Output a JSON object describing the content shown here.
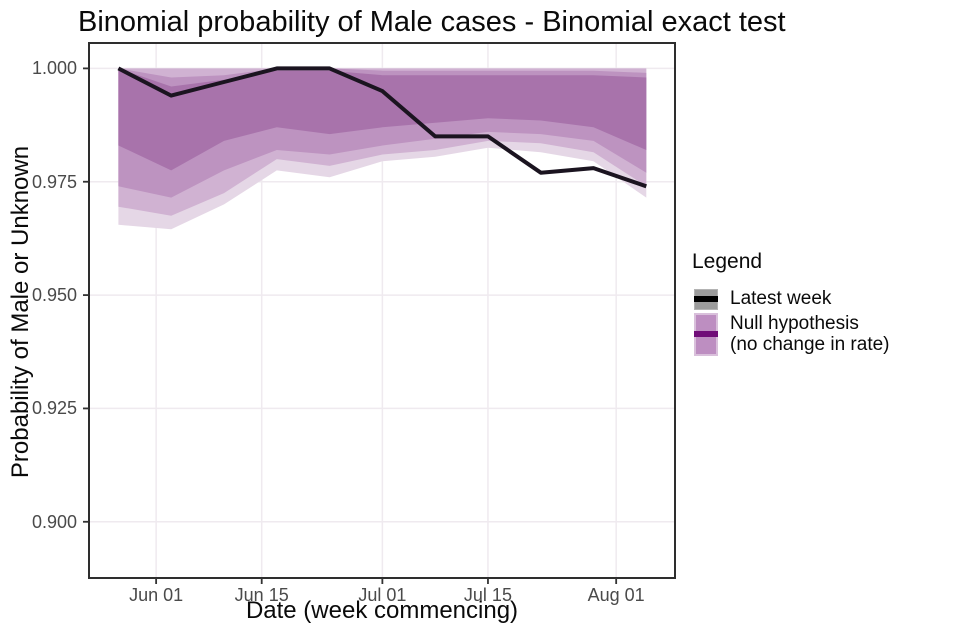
{
  "chart_data": {
    "type": "line",
    "title": "Binomial probability of Male cases - Binomial exact test",
    "xlabel": "Date (week commencing)",
    "ylabel": "Probability of Male or Unknown",
    "grid": true,
    "legend_position": "right",
    "x_dates": [
      "May 27",
      "Jun 03",
      "Jun 10",
      "Jun 17",
      "Jun 24",
      "Jul 01",
      "Jul 08",
      "Jul 15",
      "Jul 22",
      "Jul 29",
      "Aug 05"
    ],
    "x_days": [
      0,
      7,
      14,
      21,
      28,
      35,
      42,
      49,
      56,
      63,
      70
    ],
    "x_domain_days": [
      -3.9,
      73.8
    ],
    "y_domain": [
      0.8876,
      1.0056
    ],
    "x_ticks": [
      {
        "label": "Jun 01",
        "day": 5
      },
      {
        "label": "Jun 15",
        "day": 19
      },
      {
        "label": "Jul 01",
        "day": 35
      },
      {
        "label": "Jul 15",
        "day": 49
      },
      {
        "label": "Aug 01",
        "day": 66
      }
    ],
    "y_ticks": [
      {
        "label": "1.000",
        "value": 1.0
      },
      {
        "label": "0.975",
        "value": 0.975
      },
      {
        "label": "0.950",
        "value": 0.95
      },
      {
        "label": "0.925",
        "value": 0.925
      },
      {
        "label": "0.900",
        "value": 0.9
      }
    ],
    "series": [
      {
        "name": "Latest week",
        "color": "#1b1420",
        "width": 4,
        "values": [
          1.0,
          0.994,
          0.997,
          1.0,
          1.0,
          0.995,
          0.985,
          0.985,
          0.977,
          0.978,
          0.974
        ]
      }
    ],
    "bands": [
      {
        "name": "null hypothesis 99% interval",
        "color": "#e5d7e6",
        "upper": [
          1.0,
          1.0,
          1.0,
          1.0,
          1.0,
          1.0,
          1.0,
          1.0,
          1.0,
          1.0,
          1.0
        ],
        "lower": [
          0.9655,
          0.9645,
          0.97,
          0.9775,
          0.976,
          0.9795,
          0.9805,
          0.9825,
          0.9815,
          0.9795,
          0.9715
        ]
      },
      {
        "name": "null hypothesis 95% interval",
        "color": "#d0b2d2",
        "upper": [
          1.0,
          1.0,
          1.0,
          1.0,
          1.0,
          1.0,
          1.0,
          1.0,
          1.0,
          1.0,
          1.0
        ],
        "lower": [
          0.9695,
          0.9675,
          0.9725,
          0.98,
          0.9785,
          0.981,
          0.982,
          0.984,
          0.9835,
          0.9815,
          0.974
        ]
      },
      {
        "name": "null hypothesis 80% interval",
        "color": "#bd93c0",
        "upper": [
          1.0,
          0.998,
          0.9985,
          1.0,
          1.0,
          0.9995,
          0.9995,
          0.9995,
          0.9995,
          0.9995,
          0.999
        ],
        "lower": [
          0.974,
          0.9715,
          0.9775,
          0.982,
          0.981,
          0.983,
          0.9845,
          0.986,
          0.9855,
          0.984,
          0.977
        ]
      },
      {
        "name": "null hypothesis 50% interval",
        "color": "#a873ab",
        "upper": [
          1.0,
          0.996,
          0.9975,
          0.9995,
          0.9995,
          0.9985,
          0.9985,
          0.9985,
          0.9985,
          0.9985,
          0.998
        ],
        "lower": [
          0.983,
          0.9775,
          0.984,
          0.987,
          0.9855,
          0.987,
          0.988,
          0.989,
          0.9885,
          0.987,
          0.982
        ]
      }
    ],
    "colors": {
      "grid": "#efeaef",
      "panel_border": "#2e2e2e",
      "tick_mark": "#333333",
      "axis_text": "#4a4a4a"
    }
  },
  "legend": {
    "title": "Legend",
    "items": [
      {
        "label": "Latest week",
        "swatch_fill": "#9c9c9c",
        "swatch_border": "#b3b3b3",
        "line_color": "#000000"
      },
      {
        "label": "Null hypothesis",
        "label2": "(no change in rate)",
        "swatch_fill": "#bd8ec1",
        "swatch_border": "#d9c0db",
        "line_color": "#700d78"
      }
    ]
  }
}
